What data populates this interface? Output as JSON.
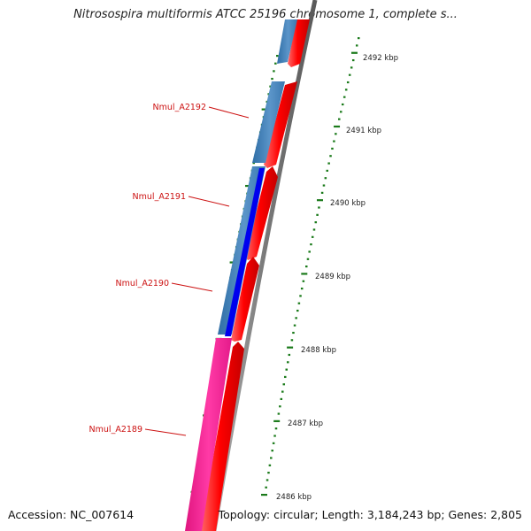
{
  "title": "Nitrosospira multiformis ATCC 25196 chromosome 1, complete s...",
  "accession": "Accession: NC_007614",
  "summary": "Topology: circular; Length: 3,184,243 bp; Genes: 2,805",
  "colors": {
    "forward_cds": "#ff0000",
    "reverse_cds": "#4a86bd",
    "gene_blue": "#0000ee",
    "gene_pink": "#ff2a9a",
    "backbone": "#8a8a8a",
    "tick_green": "#1a7a1a",
    "label_red": "#cc1111"
  },
  "scale_ticks": [
    {
      "label": "2492 kbp"
    },
    {
      "label": "2491 kbp"
    },
    {
      "label": "2490 kbp"
    },
    {
      "label": "2489 kbp"
    },
    {
      "label": "2488 kbp"
    },
    {
      "label": "2487 kbp"
    },
    {
      "label": "2486 kbp"
    }
  ],
  "gene_labels": [
    {
      "name": "Nmul_A2192"
    },
    {
      "name": "Nmul_A2191"
    },
    {
      "name": "Nmul_A2190"
    },
    {
      "name": "Nmul_A2189"
    }
  ]
}
